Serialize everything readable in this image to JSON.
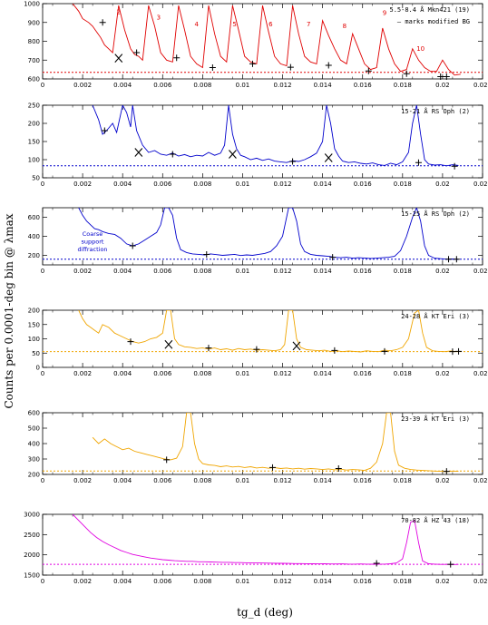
{
  "figure": {
    "ylabel": "Counts per 0.0001-deg bin @ λmax",
    "xlabel": "tg_d (deg)"
  },
  "chart_data": [
    {
      "type": "line",
      "color": "#e00000",
      "label": "5.5-8.4 Å Mkn421 (19)",
      "note": "– marks modified BG",
      "xlim": [
        0,
        0.022
      ],
      "ylim": [
        600,
        1000
      ],
      "yticks": [
        600,
        700,
        800,
        900,
        1000
      ],
      "xticks": [
        0,
        0.002,
        0.004,
        0.006,
        0.008,
        0.01,
        0.012,
        0.014,
        0.016,
        0.018,
        0.02,
        0.022
      ],
      "bg_level": 635,
      "x": [
        0.0015,
        0.0018,
        0.002,
        0.0023,
        0.0025,
        0.0027,
        0.0029,
        0.0031,
        0.0033,
        0.0035,
        0.0038,
        0.0041,
        0.0044,
        0.0046,
        0.0048,
        0.005,
        0.0053,
        0.0056,
        0.0059,
        0.0062,
        0.0065,
        0.0068,
        0.0071,
        0.0074,
        0.0077,
        0.008,
        0.0083,
        0.0086,
        0.0089,
        0.0092,
        0.0095,
        0.0098,
        0.0101,
        0.0104,
        0.0107,
        0.011,
        0.0113,
        0.0116,
        0.0119,
        0.0122,
        0.0125,
        0.0128,
        0.0131,
        0.0134,
        0.0137,
        0.014,
        0.0143,
        0.0146,
        0.0149,
        0.0152,
        0.0155,
        0.0158,
        0.0161,
        0.0164,
        0.0167,
        0.017,
        0.0173,
        0.0176,
        0.0179,
        0.0182,
        0.0185,
        0.0188,
        0.0191,
        0.0194,
        0.0197,
        0.02,
        0.0203,
        0.0206,
        0.0209
      ],
      "y": [
        1000,
        960,
        920,
        900,
        880,
        850,
        820,
        780,
        760,
        740,
        990,
        860,
        760,
        730,
        720,
        700,
        990,
        880,
        740,
        700,
        690,
        990,
        860,
        720,
        680,
        660,
        990,
        840,
        720,
        690,
        990,
        860,
        720,
        690,
        680,
        990,
        850,
        720,
        680,
        670,
        990,
        840,
        720,
        690,
        680,
        910,
        830,
        760,
        700,
        680,
        840,
        760,
        680,
        650,
        660,
        870,
        760,
        680,
        640,
        650,
        760,
        700,
        660,
        640,
        640,
        700,
        650,
        620,
        625
      ],
      "markers": [
        [
          0.003,
          900
        ],
        [
          0.0047,
          740
        ],
        [
          0.0067,
          712
        ],
        [
          0.0085,
          660
        ],
        [
          0.0105,
          680
        ],
        [
          0.0124,
          662
        ],
        [
          0.0143,
          672
        ],
        [
          0.0163,
          642
        ],
        [
          0.0182,
          628
        ],
        [
          0.0199,
          612
        ],
        [
          0.0202,
          612
        ]
      ],
      "x_marks": [
        [
          0.0038,
          710
        ]
      ],
      "numbers": [
        [
          "2",
          0.0038,
          945
        ],
        [
          "3",
          0.0058,
          915
        ],
        [
          "4",
          0.0077,
          880
        ],
        [
          "5",
          0.0096,
          880
        ],
        [
          "6",
          0.0114,
          880
        ],
        [
          "7",
          0.0133,
          880
        ],
        [
          "8",
          0.0151,
          870
        ],
        [
          "9",
          0.0171,
          940
        ],
        [
          "10",
          0.0189,
          750
        ]
      ]
    },
    {
      "type": "line",
      "color": "#0000cc",
      "label": "15-21 Å RS Oph (2)",
      "xlim": [
        0,
        0.022
      ],
      "ylim": [
        50,
        250
      ],
      "yticks": [
        50,
        100,
        150,
        200,
        250
      ],
      "xticks": [
        0,
        0.002,
        0.004,
        0.006,
        0.008,
        0.01,
        0.012,
        0.014,
        0.016,
        0.018,
        0.02,
        0.022
      ],
      "bg_level": 83,
      "x": [
        0.0025,
        0.0028,
        0.003,
        0.0032,
        0.0035,
        0.0037,
        0.004,
        0.0042,
        0.0044,
        0.0045,
        0.0047,
        0.005,
        0.0053,
        0.0056,
        0.0059,
        0.0062,
        0.0065,
        0.0068,
        0.0071,
        0.0074,
        0.0077,
        0.008,
        0.0083,
        0.0086,
        0.0089,
        0.0091,
        0.0093,
        0.0095,
        0.0097,
        0.0099,
        0.0101,
        0.0104,
        0.0107,
        0.011,
        0.0113,
        0.0116,
        0.0119,
        0.0122,
        0.0125,
        0.0128,
        0.0131,
        0.0134,
        0.0137,
        0.014,
        0.0142,
        0.0144,
        0.0146,
        0.0148,
        0.015,
        0.0153,
        0.0156,
        0.0159,
        0.0162,
        0.0165,
        0.0168,
        0.0171,
        0.0174,
        0.0177,
        0.018,
        0.0183,
        0.0185,
        0.0187,
        0.0189,
        0.0191,
        0.0193,
        0.0196,
        0.0199,
        0.0202,
        0.0205,
        0.0208
      ],
      "y": [
        250,
        210,
        170,
        180,
        200,
        175,
        250,
        230,
        190,
        250,
        180,
        140,
        120,
        125,
        115,
        112,
        118,
        110,
        114,
        108,
        112,
        110,
        120,
        112,
        118,
        140,
        250,
        170,
        130,
        112,
        108,
        100,
        104,
        98,
        102,
        96,
        94,
        92,
        97,
        95,
        100,
        108,
        118,
        150,
        250,
        200,
        130,
        110,
        96,
        92,
        94,
        90,
        88,
        91,
        86,
        84,
        90,
        86,
        94,
        120,
        200,
        250,
        170,
        100,
        88,
        85,
        86,
        83,
        86,
        84
      ],
      "markers": [
        [
          0.0031,
          180
        ],
        [
          0.0065,
          115
        ],
        [
          0.0125,
          95
        ],
        [
          0.0188,
          92
        ],
        [
          0.0206,
          82
        ]
      ],
      "x_marks": [
        [
          0.0048,
          120
        ],
        [
          0.0095,
          115
        ],
        [
          0.0143,
          105
        ]
      ],
      "numbers": []
    },
    {
      "type": "line",
      "color": "#0000cc",
      "label": "15-25 Å RS Oph (2)",
      "note_lines": [
        "Coarse",
        "support",
        "diffraction"
      ],
      "xlim": [
        0,
        0.022
      ],
      "ylim": [
        100,
        700
      ],
      "yticks": [
        200,
        400,
        600
      ],
      "xticks": [
        0,
        0.002,
        0.004,
        0.006,
        0.008,
        0.01,
        0.012,
        0.014,
        0.016,
        0.018,
        0.02,
        0.022
      ],
      "bg_level": 160,
      "x": [
        0.0018,
        0.002,
        0.0022,
        0.0024,
        0.0026,
        0.0028,
        0.003,
        0.0033,
        0.0036,
        0.0039,
        0.0042,
        0.0045,
        0.0048,
        0.0051,
        0.0054,
        0.0057,
        0.0059,
        0.0061,
        0.0063,
        0.0065,
        0.0067,
        0.0069,
        0.0072,
        0.0075,
        0.0078,
        0.0081,
        0.0084,
        0.0087,
        0.009,
        0.0093,
        0.0096,
        0.0099,
        0.0102,
        0.0105,
        0.0108,
        0.0111,
        0.0114,
        0.0117,
        0.012,
        0.0123,
        0.0125,
        0.0127,
        0.0129,
        0.0131,
        0.0134,
        0.0137,
        0.014,
        0.0143,
        0.0146,
        0.0149,
        0.0152,
        0.0155,
        0.0158,
        0.0161,
        0.0164,
        0.0167,
        0.017,
        0.0173,
        0.0176,
        0.0179,
        0.0182,
        0.0185,
        0.0187,
        0.0189,
        0.0191,
        0.0193,
        0.0196,
        0.0199,
        0.0202,
        0.0205,
        0.0208
      ],
      "y": [
        700,
        620,
        560,
        520,
        480,
        470,
        450,
        430,
        420,
        380,
        320,
        300,
        320,
        360,
        400,
        440,
        520,
        700,
        700,
        620,
        380,
        260,
        230,
        215,
        210,
        205,
        215,
        208,
        200,
        205,
        210,
        198,
        205,
        200,
        210,
        220,
        240,
        300,
        400,
        700,
        700,
        560,
        320,
        240,
        210,
        200,
        195,
        190,
        180,
        175,
        180,
        170,
        175,
        172,
        168,
        170,
        175,
        180,
        190,
        250,
        400,
        600,
        700,
        560,
        300,
        200,
        170,
        165,
        160,
        162,
        158
      ],
      "markers": [
        [
          0.0045,
          300
        ],
        [
          0.0082,
          210
        ],
        [
          0.0145,
          180
        ],
        [
          0.0203,
          160
        ],
        [
          0.0207,
          160
        ]
      ],
      "x_marks": [],
      "numbers": []
    },
    {
      "type": "line",
      "color": "#f0a500",
      "label": "24-28 Å KT Eri (3)",
      "xlim": [
        0,
        0.022
      ],
      "ylim": [
        0,
        200
      ],
      "yticks": [
        0,
        50,
        100,
        150,
        200
      ],
      "xticks": [
        0,
        0.002,
        0.004,
        0.006,
        0.008,
        0.01,
        0.012,
        0.014,
        0.016,
        0.018,
        0.02,
        0.022
      ],
      "bg_level": 55,
      "x": [
        0.0018,
        0.002,
        0.0022,
        0.0024,
        0.0026,
        0.0028,
        0.003,
        0.0033,
        0.0036,
        0.0039,
        0.0042,
        0.0045,
        0.0048,
        0.0051,
        0.0054,
        0.0057,
        0.006,
        0.0062,
        0.0064,
        0.0066,
        0.0068,
        0.0071,
        0.0074,
        0.0077,
        0.008,
        0.0083,
        0.0086,
        0.0089,
        0.0092,
        0.0095,
        0.0098,
        0.0101,
        0.0104,
        0.0107,
        0.011,
        0.0113,
        0.0116,
        0.0119,
        0.0121,
        0.0123,
        0.0125,
        0.0127,
        0.0129,
        0.0132,
        0.0135,
        0.0138,
        0.0141,
        0.0144,
        0.0147,
        0.015,
        0.0153,
        0.0156,
        0.0159,
        0.0162,
        0.0165,
        0.0168,
        0.0171,
        0.0174,
        0.0177,
        0.018,
        0.0183,
        0.0186,
        0.0188,
        0.019,
        0.0192,
        0.0195,
        0.0198,
        0.0201,
        0.0204,
        0.0207
      ],
      "y": [
        200,
        170,
        150,
        140,
        130,
        120,
        150,
        140,
        120,
        110,
        100,
        90,
        85,
        90,
        100,
        105,
        120,
        200,
        200,
        100,
        80,
        72,
        70,
        66,
        68,
        64,
        68,
        62,
        65,
        60,
        66,
        62,
        64,
        60,
        62,
        60,
        58,
        62,
        80,
        200,
        200,
        100,
        70,
        62,
        60,
        58,
        60,
        56,
        58,
        55,
        57,
        56,
        54,
        58,
        56,
        55,
        60,
        58,
        62,
        70,
        100,
        190,
        200,
        120,
        70,
        58,
        56,
        55,
        57,
        55
      ],
      "markers": [
        [
          0.0044,
          90
        ],
        [
          0.0083,
          68
        ],
        [
          0.0107,
          63
        ],
        [
          0.0146,
          59
        ],
        [
          0.0171,
          56
        ],
        [
          0.0205,
          55
        ],
        [
          0.0208,
          56
        ]
      ],
      "x_marks": [
        [
          0.0063,
          80
        ],
        [
          0.0127,
          75
        ]
      ],
      "numbers": []
    },
    {
      "type": "line",
      "color": "#f0a500",
      "label": "23-39 Å KT Eri (3)",
      "xlim": [
        0,
        0.022
      ],
      "ylim": [
        200,
        600
      ],
      "yticks": [
        200,
        300,
        400,
        500,
        600
      ],
      "xticks": [
        0,
        0.002,
        0.004,
        0.006,
        0.008,
        0.01,
        0.012,
        0.014,
        0.016,
        0.018,
        0.02,
        0.022
      ],
      "bg_level": 222,
      "x": [
        0.0025,
        0.0028,
        0.0031,
        0.0034,
        0.0037,
        0.004,
        0.0043,
        0.0046,
        0.0049,
        0.0052,
        0.0055,
        0.0058,
        0.0061,
        0.0064,
        0.0067,
        0.007,
        0.0072,
        0.0074,
        0.0076,
        0.0078,
        0.008,
        0.0083,
        0.0086,
        0.0089,
        0.0092,
        0.0095,
        0.0098,
        0.0101,
        0.0104,
        0.0107,
        0.011,
        0.0113,
        0.0116,
        0.0119,
        0.0122,
        0.0125,
        0.0128,
        0.0131,
        0.0134,
        0.0137,
        0.014,
        0.0143,
        0.0146,
        0.0149,
        0.0152,
        0.0155,
        0.0158,
        0.0161,
        0.0164,
        0.0167,
        0.017,
        0.0172,
        0.0174,
        0.0176,
        0.0178,
        0.0181,
        0.0184,
        0.0187,
        0.019,
        0.0193,
        0.0196,
        0.0199,
        0.0202,
        0.0205,
        0.0208
      ],
      "y": [
        440,
        400,
        430,
        400,
        380,
        360,
        370,
        350,
        340,
        330,
        320,
        310,
        300,
        295,
        305,
        380,
        600,
        600,
        400,
        300,
        270,
        262,
        258,
        250,
        255,
        248,
        252,
        245,
        250,
        242,
        246,
        240,
        244,
        238,
        242,
        236,
        240,
        234,
        238,
        236,
        232,
        236,
        230,
        234,
        228,
        232,
        230,
        226,
        240,
        280,
        400,
        600,
        600,
        350,
        260,
        240,
        232,
        228,
        226,
        224,
        222,
        220,
        218,
        222,
        220
      ],
      "markers": [
        [
          0.0062,
          295
        ],
        [
          0.0115,
          245
        ],
        [
          0.0148,
          238
        ],
        [
          0.0202,
          220
        ]
      ],
      "x_marks": [],
      "numbers": []
    },
    {
      "type": "line",
      "color": "#e000e0",
      "label": "70-82 Å HZ 43 (18)",
      "xlim": [
        0,
        0.022
      ],
      "ylim": [
        1500,
        3000
      ],
      "yticks": [
        1500,
        2000,
        2500,
        3000
      ],
      "xticks": [
        0,
        0.002,
        0.004,
        0.006,
        0.008,
        0.01,
        0.012,
        0.014,
        0.016,
        0.018,
        0.02,
        0.022
      ],
      "bg_level": 1765,
      "x": [
        0.0015,
        0.0018,
        0.0021,
        0.0024,
        0.0027,
        0.003,
        0.0033,
        0.0036,
        0.0039,
        0.0042,
        0.0045,
        0.0048,
        0.0051,
        0.0054,
        0.0057,
        0.006,
        0.0063,
        0.0066,
        0.0069,
        0.0072,
        0.0075,
        0.0078,
        0.0081,
        0.0084,
        0.0087,
        0.009,
        0.0093,
        0.0096,
        0.0099,
        0.0102,
        0.0105,
        0.0108,
        0.0111,
        0.0114,
        0.0117,
        0.012,
        0.0123,
        0.0126,
        0.0129,
        0.0132,
        0.0135,
        0.0138,
        0.0141,
        0.0144,
        0.0147,
        0.015,
        0.0153,
        0.0156,
        0.0159,
        0.0162,
        0.0165,
        0.0168,
        0.0171,
        0.0174,
        0.0177,
        0.018,
        0.0182,
        0.0184,
        0.0186,
        0.0188,
        0.019,
        0.0193,
        0.0196,
        0.0199,
        0.0202,
        0.0205,
        0.0208
      ],
      "y": [
        3000,
        2850,
        2700,
        2550,
        2430,
        2330,
        2250,
        2180,
        2110,
        2060,
        2010,
        1980,
        1950,
        1920,
        1900,
        1880,
        1870,
        1855,
        1850,
        1840,
        1840,
        1830,
        1830,
        1825,
        1820,
        1815,
        1815,
        1810,
        1810,
        1805,
        1800,
        1800,
        1798,
        1795,
        1790,
        1792,
        1788,
        1785,
        1784,
        1782,
        1780,
        1778,
        1780,
        1776,
        1775,
        1778,
        1772,
        1770,
        1775,
        1770,
        1768,
        1770,
        1772,
        1780,
        1800,
        1900,
        2300,
        2800,
        2850,
        2300,
        1850,
        1780,
        1770,
        1765,
        1765,
        1760,
        1765
      ],
      "markers": [
        [
          0.0167,
          1790
        ],
        [
          0.0204,
          1765
        ]
      ],
      "x_marks": [],
      "numbers": []
    }
  ]
}
